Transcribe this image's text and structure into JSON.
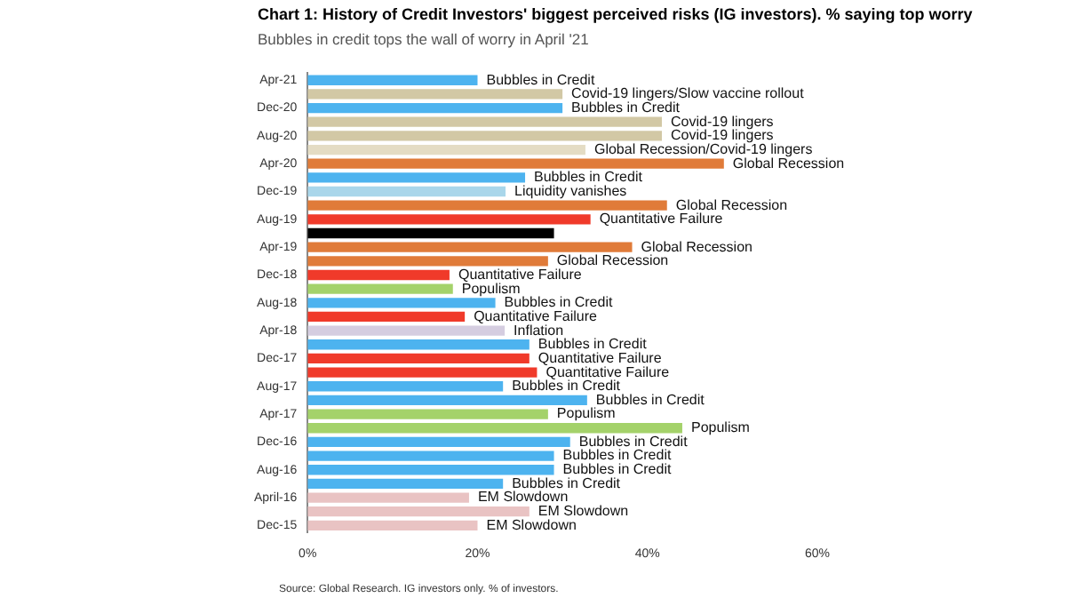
{
  "chart_data": {
    "type": "bar",
    "orientation": "horizontal",
    "title": "Chart 1: History of Credit Investors' biggest perceived risks (IG investors). % saying top worry",
    "subtitle": "Bubbles in credit tops the wall of worry in April '21",
    "categories": [
      "Apr-21",
      null,
      "Dec-20",
      null,
      "Aug-20",
      null,
      "Apr-20",
      null,
      "Dec-19",
      null,
      "Aug-19",
      null,
      "Apr-19",
      null,
      "Dec-18",
      null,
      "Aug-18",
      null,
      "Apr-18",
      null,
      "Dec-17",
      null,
      "Aug-17",
      null,
      "Apr-17",
      null,
      "Dec-16",
      null,
      "Aug-16",
      null,
      "April-16",
      null,
      "Dec-15"
    ],
    "values": [
      20,
      30,
      30,
      41.7,
      41.7,
      32.7,
      49,
      25.6,
      23.3,
      42.3,
      33.3,
      29,
      38.2,
      28.3,
      16.7,
      17.1,
      22.1,
      18.5,
      23.2,
      26.1,
      26.1,
      27,
      23,
      32.9,
      28.3,
      44.1,
      30.9,
      29,
      29,
      23,
      19,
      26.1,
      20
    ],
    "colors": [
      "#4db3ef",
      "#d2c8a5",
      "#4db3ef",
      "#d2c8a5",
      "#d2c8a5",
      "#e4dcc4",
      "#e07b39",
      "#4db3ef",
      "#a9d6ea",
      "#e07b39",
      "#f03a2a",
      "#000000",
      "#e07b39",
      "#e07b39",
      "#f03a2a",
      "#a4d26a",
      "#4db3ef",
      "#f03a2a",
      "#d5cde0",
      "#4db3ef",
      "#f03a2a",
      "#f03a2a",
      "#4db3ef",
      "#4db3ef",
      "#a4d26a",
      "#a4d26a",
      "#4db3ef",
      "#4db3ef",
      "#4db3ef",
      "#4db3ef",
      "#e9c3c3",
      "#e9c3c3",
      "#e9c3c3"
    ],
    "value_labels": [
      "Bubbles in Credit",
      "Covid-19 lingers/Slow vaccine rollout",
      "Bubbles in Credit",
      "Covid-19 lingers",
      "Covid-19 lingers",
      "Global Recession/Covid-19 lingers",
      "Global Recession",
      "Bubbles in Credit",
      "Liquidity vanishes",
      "Global Recession",
      "Quantitative Failure",
      null,
      "Global Recession",
      "Global Recession",
      "Quantitative Failure",
      "Populism",
      "Bubbles in Credit",
      "Quantitative Failure",
      "Inflation",
      "Bubbles in Credit",
      "Quantitative Failure",
      "Quantitative Failure",
      "Bubbles in Credit",
      "Bubbles in Credit",
      "Populism",
      "Populism",
      "Bubbles in Credit",
      "Bubbles in Credit",
      "Bubbles in Credit",
      "Bubbles in Credit",
      "EM Slowdown",
      "EM Slowdown",
      "EM Slowdown"
    ],
    "xlim": [
      0,
      60
    ],
    "xticks": [
      {
        "value": 0,
        "label": "0%"
      },
      {
        "value": 20,
        "label": "20%"
      },
      {
        "value": 40,
        "label": "40%"
      },
      {
        "value": 60,
        "label": "60%"
      }
    ],
    "grid": false,
    "legend": false,
    "annotations": [
      "Source: Global Research. IG investors only. % of investors."
    ]
  }
}
